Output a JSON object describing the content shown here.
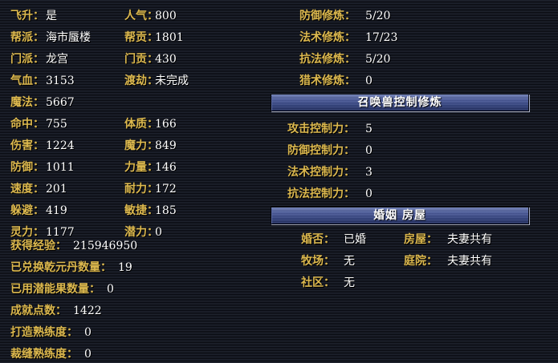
{
  "colors": {
    "background": "#05060b",
    "stripe": "#242936",
    "label_gold": "#dcb84e",
    "value_white": "#ffffff",
    "header_bar_blue": "#4a5a9c",
    "header_text": "#ffffff"
  },
  "left_panel": {
    "rows": [
      {
        "l1": "飞升：",
        "v1": "是",
        "l2": "人气：",
        "v2": "800"
      },
      {
        "l1": "帮派：",
        "v1": "海市蜃楼",
        "l2": "帮贡：",
        "v2": "1801"
      },
      {
        "l1": "门派：",
        "v1": "龙宫",
        "l2": "门贡：",
        "v2": "430"
      },
      {
        "l1": "气血：",
        "v1": "3153",
        "l2": "渡劫：",
        "v2": "未完成"
      },
      {
        "l1": "魔法：",
        "v1": "5667"
      },
      {
        "l1": "命中：",
        "v1": "755",
        "l2": "体质：",
        "v2": "166"
      },
      {
        "l1": "伤害：",
        "v1": "1224",
        "l2": "魔力：",
        "v2": "849"
      },
      {
        "l1": "防御：",
        "v1": "1011",
        "l2": "力量：",
        "v2": "146"
      },
      {
        "l1": "速度：",
        "v1": "201",
        "l2": "耐力：",
        "v2": "172"
      },
      {
        "l1": "躲避：",
        "v1": "419",
        "l2": "敏捷：",
        "v2": "185"
      },
      {
        "l1": "灵力：",
        "v1": "1177",
        "l2": "潜力：",
        "v2": "0"
      }
    ],
    "extended_rows": [
      {
        "label": "获得经验：",
        "value": "215946950"
      },
      {
        "label": "已兑换乾元丹数量：",
        "value": "19"
      },
      {
        "label": "已用潜能果数量：",
        "value": "0"
      },
      {
        "label": "成就点数：",
        "value": "1422"
      },
      {
        "label": "打造熟练度：",
        "value": "0"
      },
      {
        "label": "裁缝熟练度：",
        "value": "0"
      }
    ]
  },
  "right_panel": {
    "cultivation_rows": [
      {
        "label": "防御修炼：",
        "value": "5/20"
      },
      {
        "label": "法术修炼：",
        "value": "17/23"
      },
      {
        "label": "抗法修炼：",
        "value": "5/20"
      },
      {
        "label": "猎术修炼：",
        "value": "0"
      }
    ],
    "pet_control_header": "召唤兽控制修炼",
    "pet_control_rows": [
      {
        "label": "攻击控制力：",
        "value": "5"
      },
      {
        "label": "防御控制力：",
        "value": "0"
      },
      {
        "label": "法术控制力：",
        "value": "3"
      },
      {
        "label": "抗法控制力：",
        "value": "0"
      }
    ],
    "marriage_header": "婚姻 房屋",
    "marriage_rows": [
      {
        "l1": "婚否：",
        "v1": "已婚",
        "l2": "房屋：",
        "v2": "夫妻共有"
      },
      {
        "l1": "牧场：",
        "v1": "无",
        "l2": "庭院：",
        "v2": "夫妻共有"
      },
      {
        "l1": "社区：",
        "v1": "无"
      }
    ]
  }
}
